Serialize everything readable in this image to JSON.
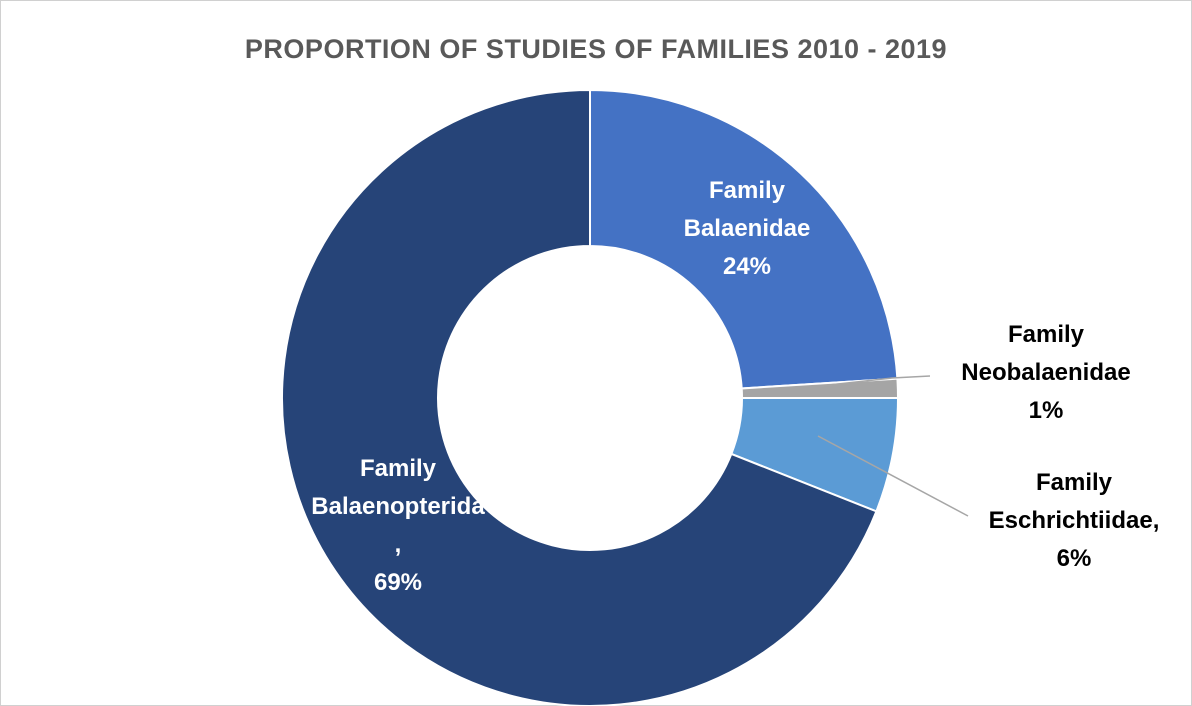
{
  "chart_data": {
    "type": "pie",
    "variant": "doughnut",
    "title": "PROPORTION OF STUDIES OF FAMILIES 2010 - 2019",
    "slices": [
      {
        "name": "Family Balaenidae",
        "value": 24,
        "percent_label": "24%",
        "color": "#4472c4",
        "label_lines": [
          "Family",
          "Balaenidae",
          "24%"
        ],
        "label_color": "#ffffff"
      },
      {
        "name": "Family Neobalaenidae",
        "value": 1,
        "percent_label": "1%",
        "color": "#a5a5a5",
        "label_lines": [
          "Family",
          "Neobalaenidae",
          "1%"
        ],
        "label_color": "#000000"
      },
      {
        "name": "Family Eschrichtiidae",
        "value": 6,
        "percent_label": "6%",
        "color": "#5b9bd5",
        "label_lines": [
          "Family",
          "Eschrichtiidae,",
          "6%"
        ],
        "label_color": "#000000"
      },
      {
        "name": "Family Balaenopteridae",
        "value": 69,
        "percent_label": "69%",
        "color": "#264478",
        "label_lines": [
          "Family",
          "Balaenopterida",
          ",",
          "69%"
        ],
        "label_color": "#ffffff"
      }
    ],
    "legend": "none"
  }
}
